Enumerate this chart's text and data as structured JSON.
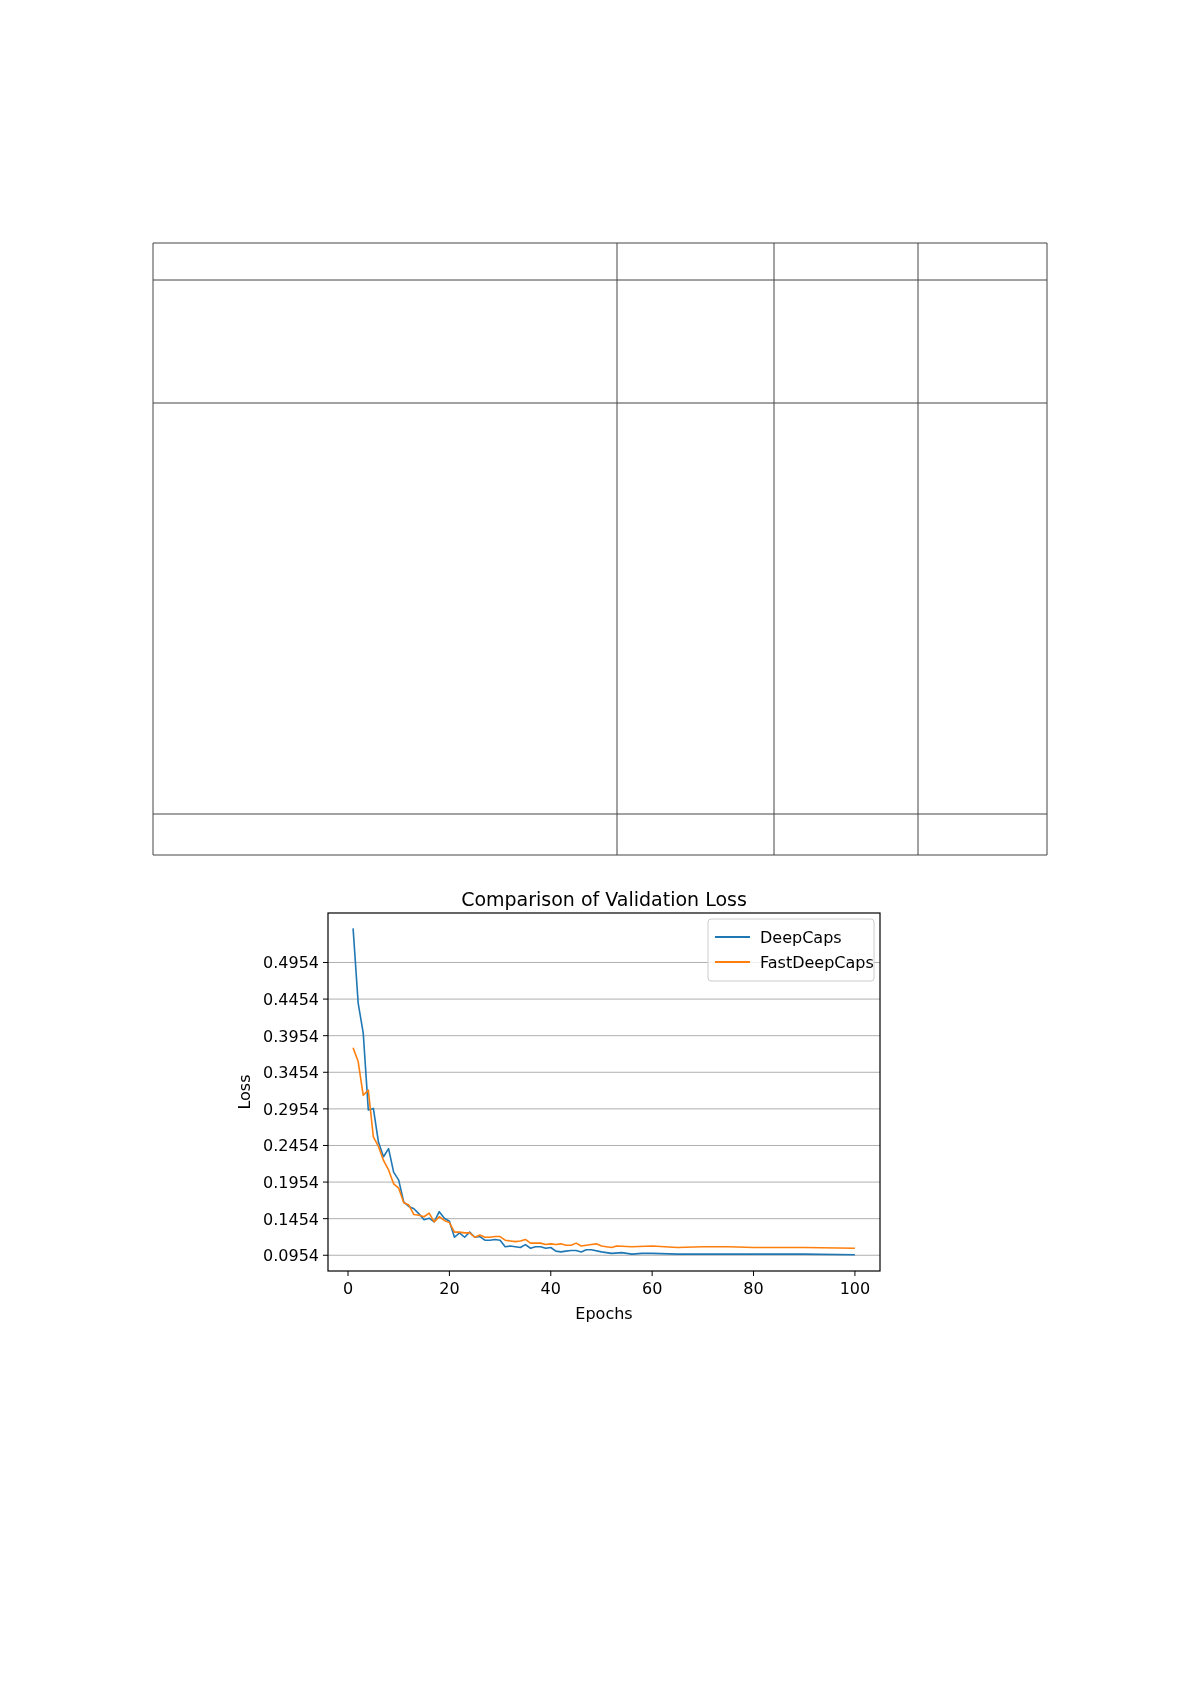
{
  "chart_data": {
    "type": "line",
    "title": "Comparison of Validation Loss",
    "xlabel": "Epochs",
    "ylabel": "Loss",
    "xlim": [
      -3.95,
      104.95
    ],
    "xticks": [
      0,
      20,
      40,
      60,
      80,
      100
    ],
    "ylim": [
      0.0739,
      0.563
    ],
    "yticks": [
      0.0954,
      0.1454,
      0.1954,
      0.2454,
      0.2954,
      0.3454,
      0.3954,
      0.4454,
      0.4954
    ],
    "grid": "y",
    "legend": "top right",
    "line_style": "solid",
    "series": [
      {
        "name": "DeepCaps",
        "color": "#1f77b4",
        "x": [
          1,
          2,
          3,
          4,
          5,
          6,
          7,
          8,
          9,
          10,
          11,
          12,
          13,
          14,
          15,
          16,
          17,
          18,
          19,
          20,
          21,
          22,
          23,
          24,
          25,
          26,
          27,
          28,
          29,
          30,
          31,
          32,
          33,
          34,
          35,
          36,
          37,
          38,
          39,
          40,
          41,
          42,
          43,
          44,
          45,
          46,
          47,
          48,
          50,
          52,
          54,
          56,
          58,
          60,
          65,
          70,
          80,
          90,
          100
        ],
        "values": [
          0.542,
          0.44,
          0.399,
          0.294,
          0.296,
          0.25,
          0.23,
          0.241,
          0.209,
          0.198,
          0.168,
          0.162,
          0.159,
          0.152,
          0.144,
          0.146,
          0.141,
          0.155,
          0.146,
          0.142,
          0.12,
          0.126,
          0.12,
          0.127,
          0.12,
          0.121,
          0.116,
          0.116,
          0.117,
          0.116,
          0.107,
          0.108,
          0.107,
          0.106,
          0.11,
          0.105,
          0.107,
          0.107,
          0.105,
          0.106,
          0.101,
          0.1,
          0.101,
          0.102,
          0.102,
          0.1,
          0.103,
          0.103,
          0.1,
          0.098,
          0.099,
          0.097,
          0.098,
          0.098,
          0.097,
          0.097,
          0.097,
          0.097,
          0.096
        ]
      },
      {
        "name": "FastDeepCaps",
        "color": "#ff7f0e",
        "x": [
          1,
          2,
          3,
          4,
          5,
          6,
          7,
          8,
          9,
          10,
          11,
          12,
          13,
          14,
          15,
          16,
          17,
          18,
          19,
          20,
          21,
          22,
          23,
          24,
          25,
          26,
          27,
          28,
          29,
          30,
          31,
          32,
          33,
          34,
          35,
          36,
          37,
          38,
          39,
          40,
          41,
          42,
          43,
          44,
          45,
          46,
          48,
          49,
          50,
          52,
          53,
          56,
          60,
          65,
          70,
          75,
          80,
          90,
          100
        ],
        "values": [
          0.379,
          0.36,
          0.314,
          0.321,
          0.257,
          0.244,
          0.225,
          0.212,
          0.193,
          0.187,
          0.167,
          0.164,
          0.151,
          0.15,
          0.148,
          0.153,
          0.141,
          0.148,
          0.143,
          0.14,
          0.127,
          0.127,
          0.126,
          0.126,
          0.12,
          0.123,
          0.12,
          0.12,
          0.121,
          0.121,
          0.116,
          0.115,
          0.114,
          0.115,
          0.117,
          0.112,
          0.112,
          0.112,
          0.11,
          0.111,
          0.11,
          0.111,
          0.109,
          0.109,
          0.112,
          0.108,
          0.11,
          0.111,
          0.108,
          0.106,
          0.108,
          0.107,
          0.108,
          0.106,
          0.107,
          0.107,
          0.106,
          0.106,
          0.105
        ]
      }
    ]
  }
}
